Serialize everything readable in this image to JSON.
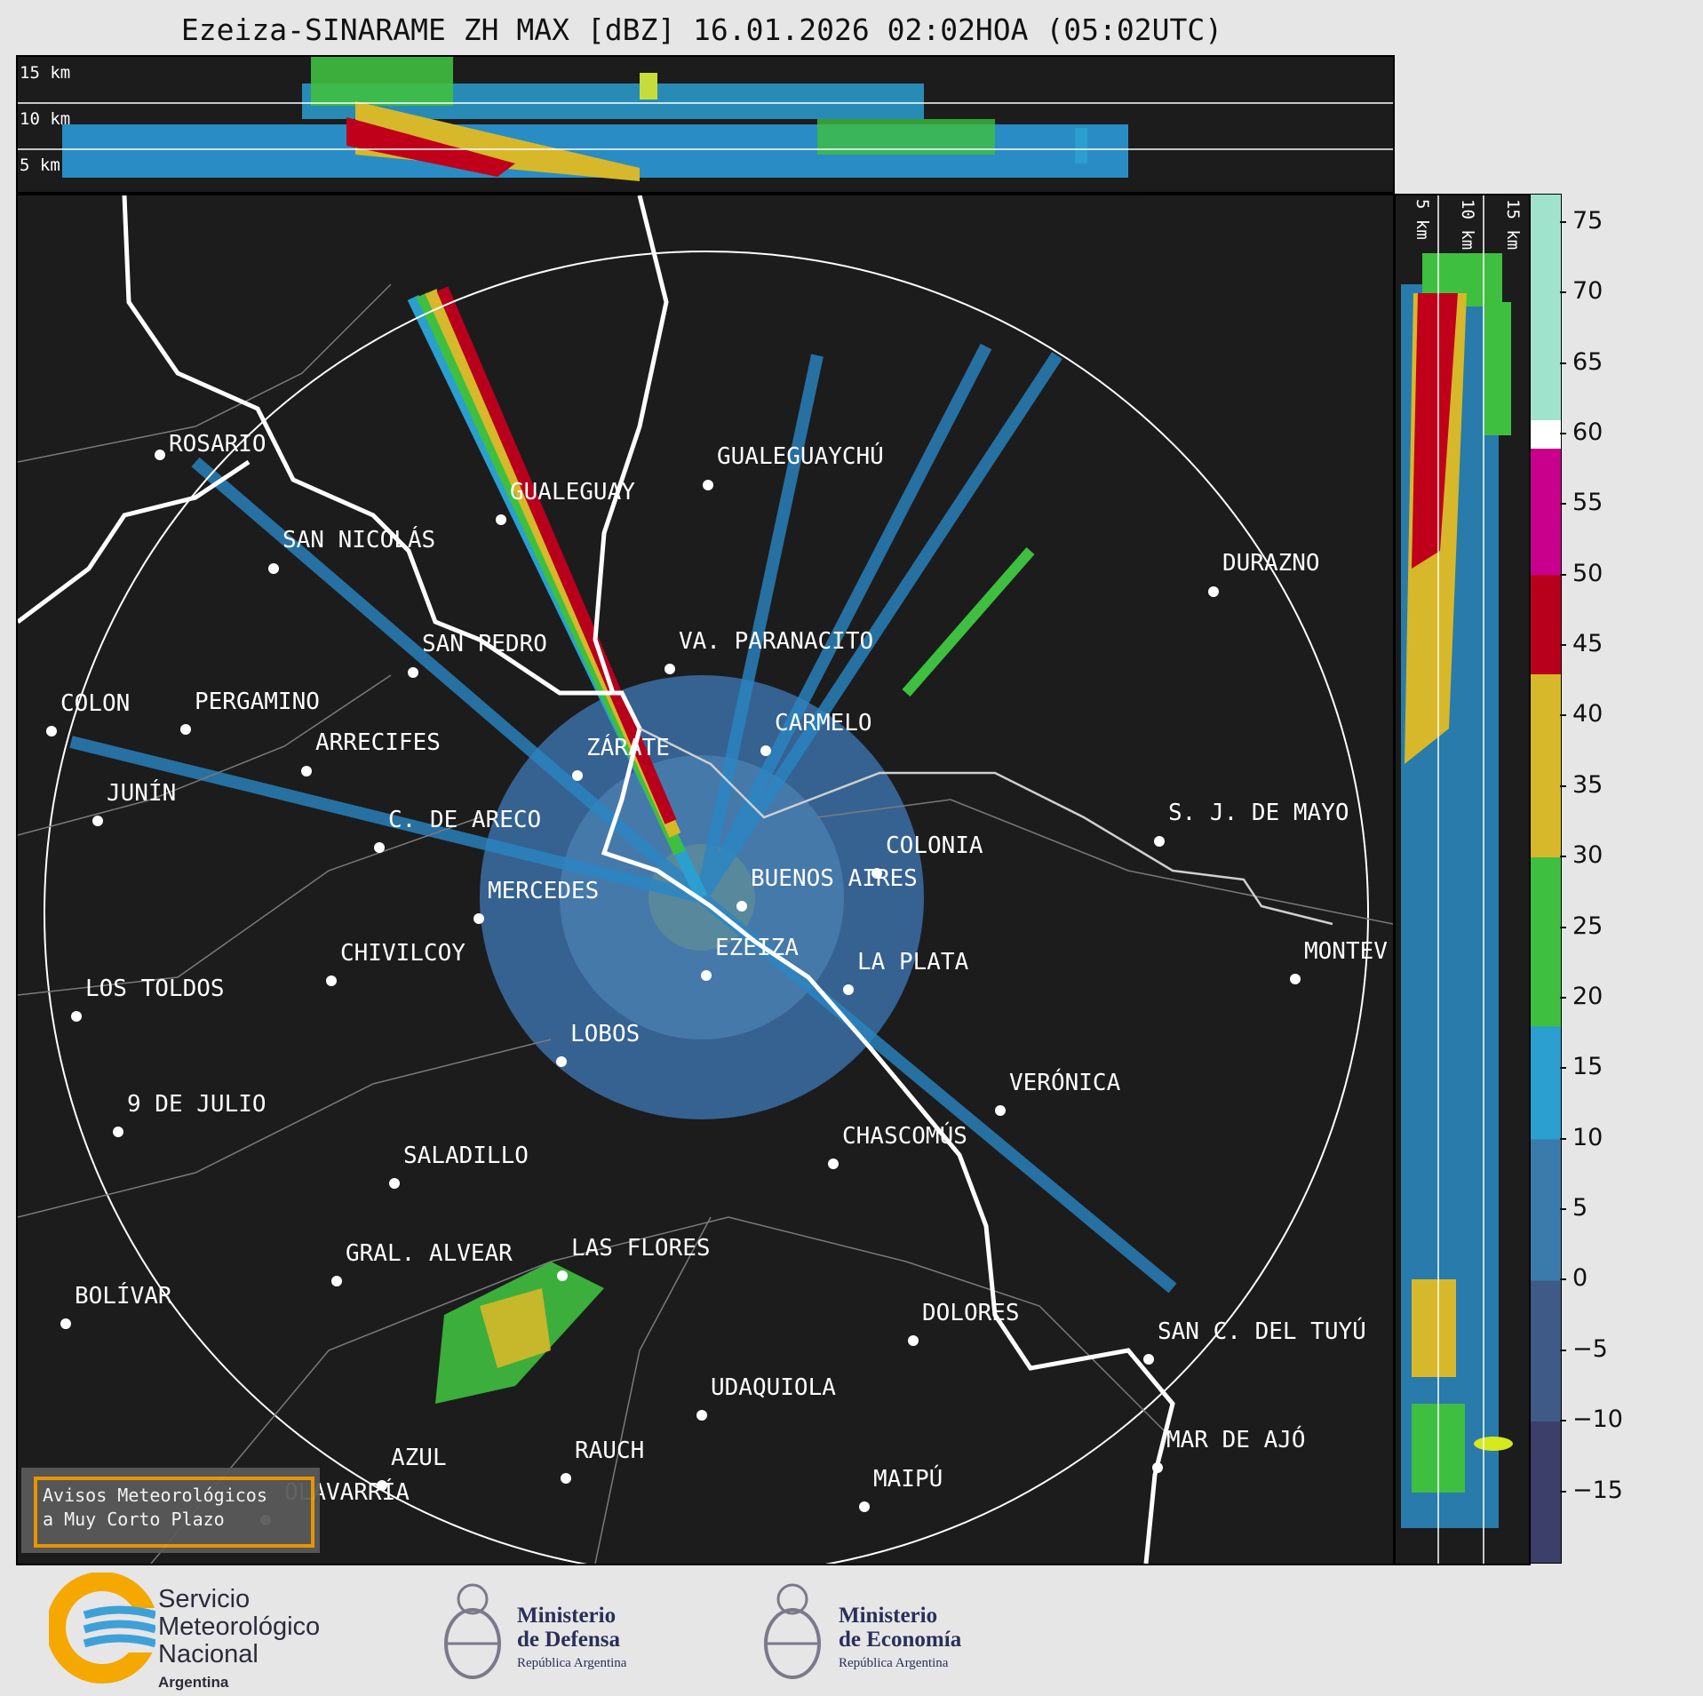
{
  "title": "Ezeiza-SINARAME ZH MAX [dBZ] 16.01.2026 02:02HOA (05:02UTC)",
  "top_panel": {
    "height_labels": [
      "15 km",
      "10 km",
      "5 km"
    ]
  },
  "side_panel": {
    "height_labels": [
      "5 km",
      "10 km",
      "15 km"
    ]
  },
  "colorbar": {
    "ticks": [
      "75",
      "70",
      "65",
      "60",
      "55",
      "50",
      "45",
      "40",
      "35",
      "30",
      "25",
      "20",
      "15",
      "10",
      "5",
      "0",
      "−5",
      "−10",
      "−15"
    ],
    "range": [
      -20,
      77
    ],
    "bands": [
      {
        "from": -20,
        "to": -10,
        "color": "#3b3f6a"
      },
      {
        "from": -10,
        "to": 0,
        "color": "#3f5a86"
      },
      {
        "from": 0,
        "to": 10,
        "color": "#3a7bab"
      },
      {
        "from": 10,
        "to": 18,
        "color": "#2a9fd0"
      },
      {
        "from": 18,
        "to": 30,
        "color": "#3fbf3f"
      },
      {
        "from": 30,
        "to": 43,
        "color": "#d6b82a"
      },
      {
        "from": 43,
        "to": 50,
        "color": "#b8001c"
      },
      {
        "from": 50,
        "to": 59,
        "color": "#c8008c"
      },
      {
        "from": 59,
        "to": 61,
        "color": "#ffffff"
      },
      {
        "from": 61,
        "to": 77,
        "color": "#9fe3cc"
      }
    ]
  },
  "cities": [
    {
      "name": "ROSARIO"
    },
    {
      "name": "GUALEGUAYCHÚ"
    },
    {
      "name": "GUALEGUAY"
    },
    {
      "name": "SAN NICOLÁS"
    },
    {
      "name": "DURAZNO"
    },
    {
      "name": "SAN PEDRO"
    },
    {
      "name": "VA. PARANACITO"
    },
    {
      "name": "COLON"
    },
    {
      "name": "PERGAMINO"
    },
    {
      "name": "CARMELO"
    },
    {
      "name": "ARRECIFES"
    },
    {
      "name": "ZÁRATE"
    },
    {
      "name": "S. J. DE MAYO"
    },
    {
      "name": "C. DE ARECO"
    },
    {
      "name": "COLONIA"
    },
    {
      "name": "JUNÍN"
    },
    {
      "name": "BUENOS AIRES"
    },
    {
      "name": "MERCEDES"
    },
    {
      "name": "EZEIZA"
    },
    {
      "name": "MONTEV"
    },
    {
      "name": "CHIVILCOY"
    },
    {
      "name": "LA PLATA"
    },
    {
      "name": "LOS TOLDOS"
    },
    {
      "name": "LOBOS"
    },
    {
      "name": "VERÓNICA"
    },
    {
      "name": "9 DE JULIO"
    },
    {
      "name": "CHASCOMÚS"
    },
    {
      "name": "SALADILLO"
    },
    {
      "name": "GRAL. ALVEAR"
    },
    {
      "name": "LAS FLORES"
    },
    {
      "name": "BOLÍVAR"
    },
    {
      "name": "DOLORES"
    },
    {
      "name": "SAN C. DEL TUYÚ"
    },
    {
      "name": "UDAQUIOLA"
    },
    {
      "name": "MAR DE AJÓ"
    },
    {
      "name": "AZUL"
    },
    {
      "name": "RAUCH"
    },
    {
      "name": "OLAVARRÍA"
    },
    {
      "name": "MAIPÚ"
    }
  ],
  "alert_box": {
    "line1": "Avisos Meteorológicos",
    "line2": "a Muy Corto Plazo"
  },
  "footer": {
    "smn": {
      "line1": "Servicio",
      "line2": "Meteorológico",
      "line3": "Nacional",
      "line4": "Argentina"
    },
    "defensa": {
      "line1": "Ministerio",
      "line2": "de Defensa",
      "line3": "República Argentina"
    },
    "economia": {
      "line1": "Ministerio",
      "line2": "de Economía",
      "line3": "República Argentina"
    }
  },
  "colors": {
    "background": "#e6e6e6",
    "map_bg": "#1c1c1c",
    "accent": "#f29c00"
  }
}
